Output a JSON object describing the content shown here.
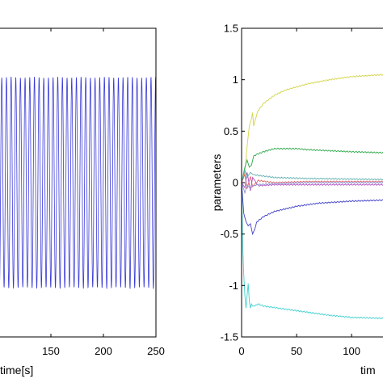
{
  "chart_data": [
    {
      "type": "line",
      "title": "",
      "xlabel": "time[s]",
      "xlim": [
        100,
        250
      ],
      "x_ticks": [
        150,
        200,
        250
      ],
      "x_tick_labels": [
        "150",
        "200",
        "250"
      ],
      "grid": false,
      "series": [
        {
          "color": "#3a3ad8",
          "kind": "oscillation",
          "x_start": 100,
          "x_end": 250,
          "period": 4.44,
          "amplitude": 1.0
        }
      ]
    },
    {
      "type": "line",
      "title": "",
      "xlabel": "tim",
      "ylabel": "parameters",
      "xlim": [
        0,
        130
      ],
      "ylim": [
        -1.5,
        1.5
      ],
      "x_ticks": [
        0,
        50,
        100
      ],
      "x_tick_labels": [
        "0",
        "50",
        "100"
      ],
      "y_ticks": [
        1.5,
        1,
        0.5,
        0,
        -0.5,
        -1,
        -1.5
      ],
      "y_tick_labels": [
        "1.5",
        "1",
        "0.5",
        "0",
        "-0.5",
        "-1",
        "-1.5"
      ],
      "grid": false,
      "series": [
        {
          "color": "#d4d44a",
          "x": [
            0,
            3,
            5,
            7,
            9,
            10,
            11,
            12,
            15,
            20,
            30,
            40,
            60,
            80,
            100,
            130
          ],
          "y": [
            0,
            0.1,
            0.35,
            0.55,
            0.62,
            0.68,
            0.55,
            0.6,
            0.7,
            0.77,
            0.85,
            0.9,
            0.96,
            1.0,
            1.03,
            1.05
          ]
        },
        {
          "color": "#2ea84a",
          "x": [
            0,
            3,
            5,
            7,
            9,
            11,
            15,
            20,
            30,
            40,
            50,
            60,
            80,
            100,
            130
          ],
          "y": [
            0,
            0.15,
            0.22,
            0.15,
            0.17,
            0.26,
            0.28,
            0.3,
            0.33,
            0.33,
            0.33,
            0.32,
            0.31,
            0.3,
            0.29
          ]
        },
        {
          "color": "#4040c8",
          "x": [
            0,
            2,
            4,
            6,
            8,
            10,
            12,
            14,
            20,
            30,
            50,
            70,
            100,
            130
          ],
          "y": [
            0,
            -0.3,
            -0.38,
            -0.42,
            -0.4,
            -0.5,
            -0.45,
            -0.38,
            -0.33,
            -0.28,
            -0.23,
            -0.2,
            -0.18,
            -0.17
          ]
        },
        {
          "color": "#40d0d0",
          "x": [
            0,
            1,
            2,
            3,
            4,
            5,
            6,
            7,
            8,
            9,
            10,
            12,
            15,
            20,
            40,
            60,
            80,
            100,
            130
          ],
          "y": [
            0,
            -0.6,
            -0.9,
            -1.1,
            -1.22,
            -1.1,
            -0.98,
            -1.15,
            -1.22,
            -1.18,
            -1.2,
            -1.2,
            -1.18,
            -1.2,
            -1.23,
            -1.26,
            -1.29,
            -1.31,
            -1.32
          ]
        },
        {
          "color": "#e06060",
          "x": [
            0,
            3,
            5,
            8,
            10,
            15,
            30,
            60,
            130
          ],
          "y": [
            0,
            0.08,
            -0.06,
            0.06,
            -0.04,
            0.02,
            0.0,
            0.01,
            0.01
          ]
        },
        {
          "color": "#b050c0",
          "x": [
            0,
            3,
            5,
            8,
            10,
            15,
            30,
            60,
            130
          ],
          "y": [
            0,
            -0.05,
            0.1,
            -0.08,
            0.05,
            -0.03,
            -0.02,
            -0.02,
            -0.02
          ]
        },
        {
          "color": "#60b0b0",
          "x": [
            0,
            3,
            5,
            8,
            10,
            15,
            30,
            60,
            130
          ],
          "y": [
            0,
            0.12,
            0.05,
            0.1,
            0.08,
            0.07,
            0.05,
            0.04,
            0.03
          ]
        },
        {
          "color": "#9090d0",
          "x": [
            0,
            3,
            5,
            8,
            10,
            15,
            30,
            60,
            130
          ],
          "y": [
            0,
            -0.1,
            -0.02,
            -0.06,
            -0.03,
            -0.02,
            -0.01,
            0.0,
            0.0
          ]
        }
      ]
    }
  ]
}
